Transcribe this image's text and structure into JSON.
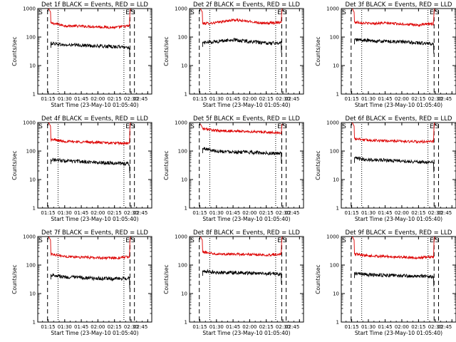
{
  "chart_data": [
    {
      "type": "line",
      "title": "Det 1f BLACK = Events, RED = LLD",
      "xlabel": "Start Time (23-May-10 01:05:40)",
      "ylabel": "Counts/sec",
      "x_ticks": [
        "01:15",
        "01:30",
        "01:45",
        "02:00",
        "02:15",
        "02:30",
        "02:45"
      ],
      "y_ticks": [
        "1",
        "10",
        "100",
        "1000"
      ],
      "yscale": "log",
      "ylim": [
        1,
        1000
      ],
      "markers": [
        "S",
        "E",
        "S"
      ],
      "series": [
        {
          "color": "#dd0000",
          "role": "LLD",
          "shape": "bathtub",
          "edge": 1000,
          "x": [
            "01:20",
            "01:30",
            "01:45",
            "02:00",
            "02:15",
            "02:25"
          ],
          "values": [
            300,
            250,
            240,
            230,
            215,
            240
          ]
        },
        {
          "color": "#000000",
          "role": "Events",
          "x": [
            "01:20",
            "01:30",
            "01:45",
            "02:00",
            "02:15",
            "02:25"
          ],
          "values": [
            60,
            52,
            52,
            48,
            46,
            44
          ]
        }
      ]
    },
    {
      "type": "line",
      "title": "Det 2f BLACK = Events, RED = LLD",
      "xlabel": "Start Time (23-May-10 01:05:40)",
      "ylabel": "Counts/sec",
      "x_ticks": [
        "01:15",
        "01:30",
        "01:45",
        "02:00",
        "02:15",
        "02:30",
        "02:45"
      ],
      "y_ticks": [
        "1",
        "10",
        "100",
        "1000"
      ],
      "yscale": "log",
      "ylim": [
        1,
        1000
      ],
      "markers": [
        "S",
        "E",
        "S"
      ],
      "series": [
        {
          "color": "#dd0000",
          "role": "LLD",
          "shape": "bathtub",
          "edge": 1000,
          "x": [
            "01:20",
            "01:30",
            "01:45",
            "02:00",
            "02:15",
            "02:25"
          ],
          "values": [
            300,
            320,
            400,
            350,
            300,
            330
          ]
        },
        {
          "color": "#000000",
          "role": "Events",
          "x": [
            "01:20",
            "01:30",
            "01:45",
            "02:00",
            "02:15",
            "02:25"
          ],
          "values": [
            65,
            70,
            80,
            70,
            60,
            62
          ]
        }
      ]
    },
    {
      "type": "line",
      "title": "Det 3f BLACK = Events, RED = LLD",
      "xlabel": "Start Time (23-May-10 01:05:40)",
      "ylabel": "Counts/sec",
      "x_ticks": [
        "01:15",
        "01:30",
        "01:45",
        "02:00",
        "02:15",
        "02:30",
        "02:45"
      ],
      "y_ticks": [
        "1",
        "10",
        "100",
        "1000"
      ],
      "yscale": "log",
      "ylim": [
        1,
        1000
      ],
      "markers": [
        "S",
        "E",
        "S"
      ],
      "series": [
        {
          "color": "#dd0000",
          "role": "LLD",
          "shape": "bathtub",
          "edge": 1000,
          "x": [
            "01:20",
            "01:30",
            "01:45",
            "02:00",
            "02:15",
            "02:25"
          ],
          "values": [
            330,
            300,
            310,
            290,
            260,
            290
          ]
        },
        {
          "color": "#000000",
          "role": "Events",
          "x": [
            "01:20",
            "01:30",
            "01:45",
            "02:00",
            "02:15",
            "02:25"
          ],
          "values": [
            80,
            75,
            70,
            68,
            62,
            58
          ]
        }
      ]
    },
    {
      "type": "line",
      "title": "Det 4f BLACK = Events, RED = LLD",
      "xlabel": "Start Time (23-May-10 01:05:40)",
      "ylabel": "Counts/sec",
      "x_ticks": [
        "01:15",
        "01:30",
        "01:45",
        "02:00",
        "02:15",
        "02:30",
        "02:45"
      ],
      "y_ticks": [
        "1",
        "10",
        "100",
        "1000"
      ],
      "yscale": "log",
      "ylim": [
        1,
        1000
      ],
      "markers": [
        "S",
        "E",
        "S"
      ],
      "series": [
        {
          "color": "#dd0000",
          "role": "LLD",
          "shape": "bathtub",
          "edge": 1000,
          "x": [
            "01:20",
            "01:30",
            "01:45",
            "02:00",
            "02:15",
            "02:25"
          ],
          "values": [
            250,
            220,
            210,
            200,
            190,
            185
          ]
        },
        {
          "color": "#000000",
          "role": "Events",
          "x": [
            "01:20",
            "01:30",
            "01:45",
            "02:00",
            "02:15",
            "02:25"
          ],
          "values": [
            50,
            45,
            43,
            40,
            38,
            36
          ]
        }
      ]
    },
    {
      "type": "line",
      "title": "Det 5f BLACK = Events, RED = LLD",
      "xlabel": "Start Time (23-May-10 01:05:40)",
      "ylabel": "Counts/sec",
      "x_ticks": [
        "01:15",
        "01:30",
        "01:45",
        "02:00",
        "02:15",
        "02:30",
        "02:45"
      ],
      "y_ticks": [
        "1",
        "10",
        "100",
        "1000"
      ],
      "yscale": "log",
      "ylim": [
        1,
        1000
      ],
      "markers": [
        "S",
        "E",
        "S"
      ],
      "series": [
        {
          "color": "#dd0000",
          "role": "LLD",
          "shape": "bathtub",
          "edge": 900,
          "x": [
            "01:20",
            "01:30",
            "01:45",
            "02:00",
            "02:15",
            "02:25"
          ],
          "values": [
            600,
            520,
            500,
            480,
            460,
            440
          ]
        },
        {
          "color": "#000000",
          "role": "Events",
          "x": [
            "01:20",
            "01:30",
            "01:45",
            "02:00",
            "02:15",
            "02:25"
          ],
          "values": [
            120,
            100,
            95,
            90,
            85,
            82
          ]
        }
      ]
    },
    {
      "type": "line",
      "title": "Det 6f BLACK = Events, RED = LLD",
      "xlabel": "Start Time (23-May-10 01:05:40)",
      "ylabel": "Counts/sec",
      "x_ticks": [
        "01:15",
        "01:30",
        "01:45",
        "02:00",
        "02:15",
        "02:30",
        "02:45"
      ],
      "y_ticks": [
        "1",
        "10",
        "100",
        "1000"
      ],
      "yscale": "log",
      "ylim": [
        1,
        1000
      ],
      "markers": [
        "S",
        "E",
        "S"
      ],
      "series": [
        {
          "color": "#dd0000",
          "role": "LLD",
          "shape": "bathtub",
          "edge": 1000,
          "x": [
            "01:20",
            "01:30",
            "01:45",
            "02:00",
            "02:15",
            "02:25"
          ],
          "values": [
            270,
            240,
            230,
            220,
            210,
            215
          ]
        },
        {
          "color": "#000000",
          "role": "Events",
          "x": [
            "01:20",
            "01:30",
            "01:45",
            "02:00",
            "02:15",
            "02:25"
          ],
          "values": [
            55,
            50,
            48,
            45,
            42,
            40
          ]
        }
      ]
    },
    {
      "type": "line",
      "title": "Det 7f BLACK = Events, RED = LLD",
      "xlabel": "Start Time (23-May-10 01:05:40)",
      "ylabel": "Counts/sec",
      "x_ticks": [
        "01:15",
        "01:30",
        "01:45",
        "02:00",
        "02:15",
        "02:30",
        "02:45"
      ],
      "y_ticks": [
        "1",
        "10",
        "100",
        "1000"
      ],
      "yscale": "log",
      "ylim": [
        1,
        1000
      ],
      "markers": [
        "S",
        "E",
        "S"
      ],
      "series": [
        {
          "color": "#dd0000",
          "role": "LLD",
          "shape": "bathtub",
          "edge": 1000,
          "x": [
            "01:20",
            "01:30",
            "01:45",
            "02:00",
            "02:15",
            "02:25"
          ],
          "values": [
            240,
            200,
            190,
            180,
            175,
            190
          ]
        },
        {
          "color": "#000000",
          "role": "Events",
          "x": [
            "01:20",
            "01:30",
            "01:45",
            "02:00",
            "02:15",
            "02:25"
          ],
          "values": [
            45,
            38,
            36,
            34,
            33,
            34
          ]
        }
      ]
    },
    {
      "type": "line",
      "title": "Det 8f BLACK = Events, RED = LLD",
      "xlabel": "Start Time (23-May-10 01:05:40)",
      "ylabel": "Counts/sec",
      "x_ticks": [
        "01:15",
        "01:30",
        "01:45",
        "02:00",
        "02:15",
        "02:30",
        "02:45"
      ],
      "y_ticks": [
        "1",
        "10",
        "100",
        "1000"
      ],
      "yscale": "log",
      "ylim": [
        1,
        1000
      ],
      "markers": [
        "S",
        "E",
        "S"
      ],
      "series": [
        {
          "color": "#dd0000",
          "role": "LLD",
          "shape": "bathtub",
          "edge": 1000,
          "x": [
            "01:20",
            "01:30",
            "01:45",
            "02:00",
            "02:15",
            "02:25"
          ],
          "values": [
            280,
            250,
            240,
            235,
            225,
            240
          ]
        },
        {
          "color": "#000000",
          "role": "Events",
          "x": [
            "01:20",
            "01:30",
            "01:45",
            "02:00",
            "02:15",
            "02:25"
          ],
          "values": [
            60,
            55,
            55,
            52,
            50,
            48
          ]
        }
      ]
    },
    {
      "type": "line",
      "title": "Det 9f BLACK = Events, RED = LLD",
      "xlabel": "Start Time (23-May-10 01:05:40)",
      "ylabel": "Counts/sec",
      "x_ticks": [
        "01:15",
        "01:30",
        "01:45",
        "02:00",
        "02:15",
        "02:30",
        "02:45"
      ],
      "y_ticks": [
        "1",
        "10",
        "100",
        "1000"
      ],
      "yscale": "log",
      "ylim": [
        1,
        1000
      ],
      "markers": [
        "S",
        "E",
        "S"
      ],
      "series": [
        {
          "color": "#dd0000",
          "role": "LLD",
          "shape": "bathtub",
          "edge": 1000,
          "x": [
            "01:20",
            "01:30",
            "01:45",
            "02:00",
            "02:15",
            "02:25"
          ],
          "values": [
            240,
            210,
            200,
            190,
            180,
            190
          ]
        },
        {
          "color": "#000000",
          "role": "Events",
          "x": [
            "01:20",
            "01:30",
            "01:45",
            "02:00",
            "02:15",
            "02:25"
          ],
          "values": [
            50,
            45,
            44,
            42,
            40,
            40
          ]
        }
      ]
    }
  ]
}
